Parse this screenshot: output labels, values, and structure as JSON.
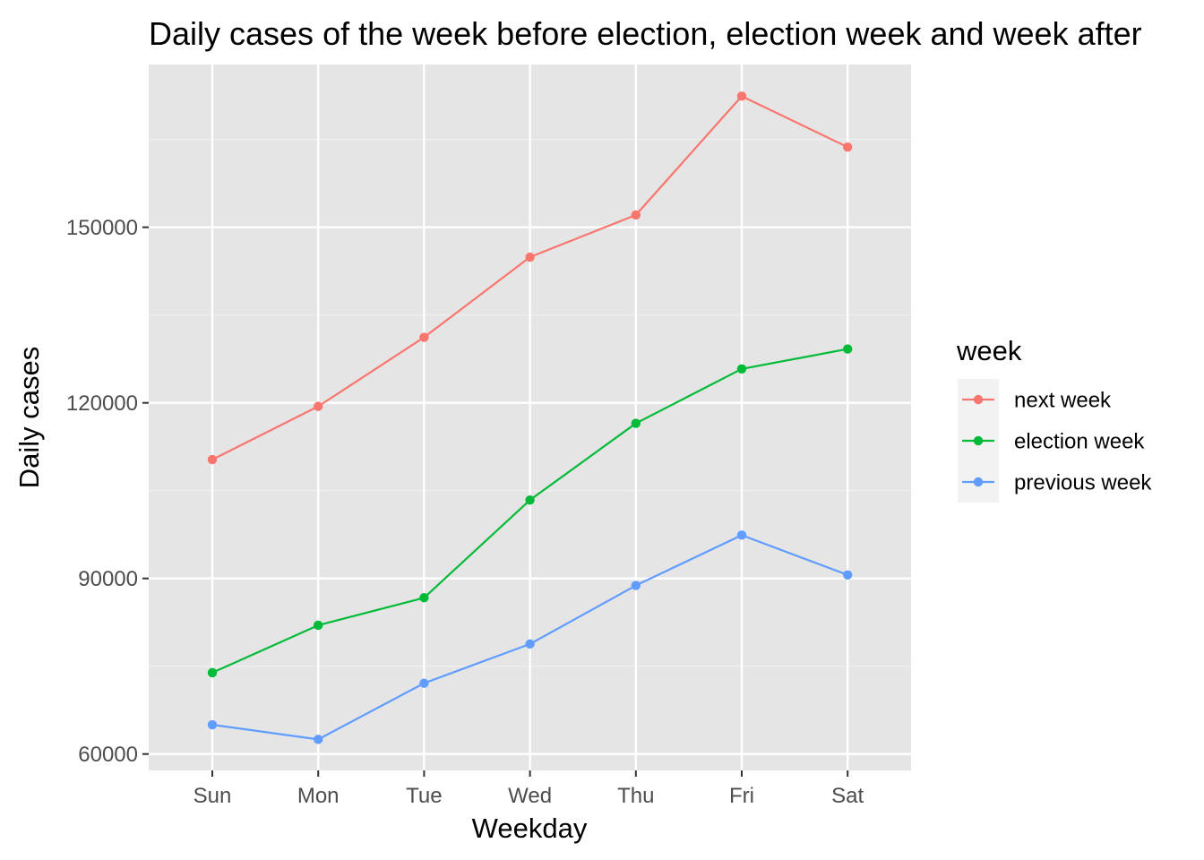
{
  "chart_data": {
    "type": "line",
    "title": "Daily cases of the week before election, election week and week after",
    "xlabel": "Weekday",
    "ylabel": "Daily cases",
    "categories": [
      "Sun",
      "Mon",
      "Tue",
      "Wed",
      "Thu",
      "Fri",
      "Sat"
    ],
    "ylim": [
      57200,
      172500
    ],
    "yticks": [
      60000,
      90000,
      120000,
      150000
    ],
    "ytick_labels": [
      "60000",
      "90000",
      "120000",
      "150000"
    ],
    "grid": true,
    "background_color": "#e5e5e5",
    "legend": {
      "title": "week",
      "placement": "right"
    },
    "series": [
      {
        "name": "next week",
        "color": "#f8766d",
        "values": [
          110300,
          119400,
          131200,
          144900,
          152100,
          172400,
          163700
        ]
      },
      {
        "name": "election week",
        "color": "#00ba38",
        "values": [
          73900,
          82000,
          86700,
          103400,
          116500,
          125800,
          129200
        ]
      },
      {
        "name": "previous week",
        "color": "#619cff",
        "values": [
          65000,
          62500,
          72100,
          78800,
          88800,
          97400,
          90600
        ]
      }
    ]
  }
}
